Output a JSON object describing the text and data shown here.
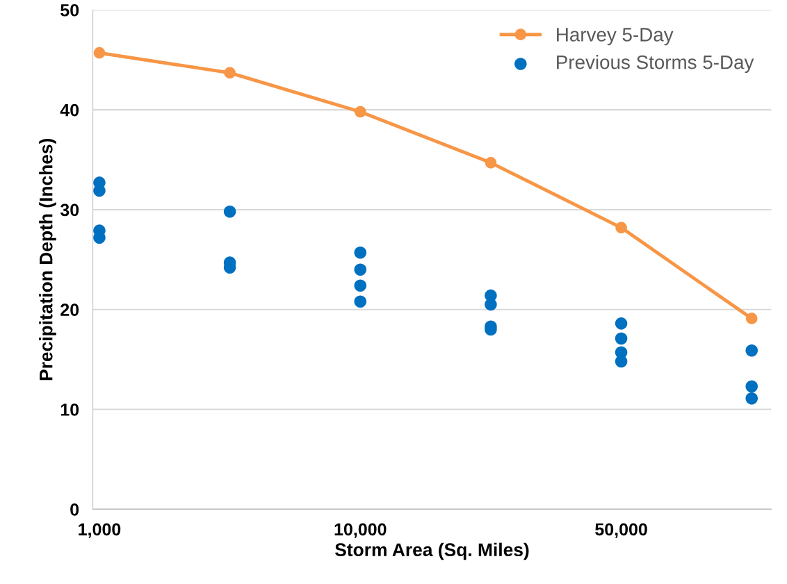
{
  "chart_data": {
    "type": "line",
    "xlabel": "Storm Area (Sq. Miles)",
    "ylabel": "Precipitation Depth (Inches)",
    "categories": [
      "1,000",
      null,
      "10,000",
      null,
      "50,000",
      null
    ],
    "series": [
      {
        "name": "Harvey 5-Day",
        "marker": "circle",
        "color": "#f79646",
        "values": [
          45.7,
          43.7,
          39.8,
          34.7,
          28.2,
          19.1
        ]
      },
      {
        "name": "Previous Storms 5-Day",
        "type": "scatter",
        "color": "#0070c0",
        "values": [
          32.7,
          29.8,
          25.7,
          21.4,
          18.6,
          15.9
        ]
      },
      {
        "type": "scatter",
        "color": "#0070c0",
        "values": [
          31.9,
          24.7,
          24.0,
          20.5,
          17.1,
          12.3
        ]
      },
      {
        "type": "scatter",
        "color": "#0070c0",
        "values": [
          27.9,
          24.2,
          22.4,
          18.3,
          15.7,
          11.1
        ]
      },
      {
        "type": "scatter",
        "color": "#0070c0",
        "values": [
          27.2,
          null,
          20.8,
          18.0,
          14.8,
          null
        ]
      }
    ],
    "ylim": [
      0,
      50
    ],
    "yticks": [
      0,
      10,
      20,
      30,
      40,
      50
    ],
    "grid": "y",
    "legend": "top right"
  }
}
